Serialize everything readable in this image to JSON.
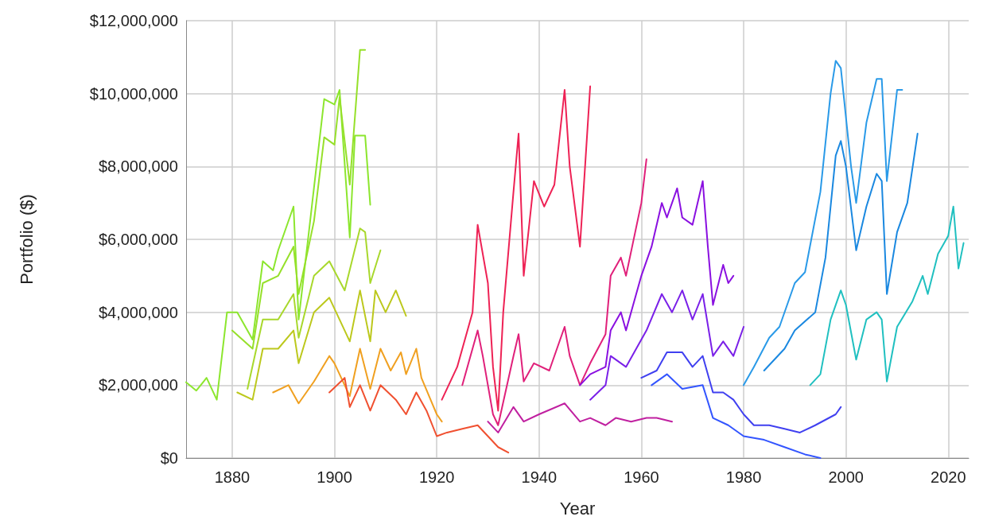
{
  "chart_data": {
    "type": "line",
    "xlabel": "Year",
    "ylabel": "Portfolio ($)",
    "xlim": [
      1871,
      2024
    ],
    "xticks": [
      1880,
      1900,
      1920,
      1940,
      1960,
      1980,
      2000,
      2020
    ],
    "ylim": [
      0,
      12000000
    ],
    "yticks": [
      {
        "value": 0,
        "label": "$0"
      },
      {
        "value": 2000000,
        "label": "$2,000,000"
      },
      {
        "value": 4000000,
        "label": "$4,000,000"
      },
      {
        "value": 6000000,
        "label": "$6,000,000"
      },
      {
        "value": 8000000,
        "label": "$8,000,000"
      },
      {
        "value": 10000000,
        "label": "$10,000,000"
      },
      {
        "value": 12000000,
        "label": "$12,000,000"
      }
    ],
    "grid": true,
    "marker": "none",
    "line_style": "solid",
    "series": [
      {
        "color": "#8ce62e",
        "x": [
          1871,
          1873,
          1875,
          1877,
          1879,
          1881,
          1884,
          1886,
          1888,
          1889,
          1892,
          1893,
          1895,
          1898,
          1900,
          1901,
          1903,
          1904,
          1906,
          1907
        ],
        "values": [
          2080000,
          1850000,
          2200000,
          1600000,
          4000000,
          4000000,
          3250000,
          5400000,
          5150000,
          5700000,
          6900000,
          3800000,
          6200000,
          9850000,
          9700000,
          10100000,
          6050000,
          8850000,
          8850000,
          6950000
        ]
      },
      {
        "color": "#96e02a",
        "x": [
          1880,
          1884,
          1886,
          1889,
          1892,
          1893,
          1896,
          1898,
          1900,
          1901,
          1903,
          1905,
          1906
        ],
        "values": [
          3500000,
          3000000,
          4800000,
          5000000,
          5800000,
          4500000,
          6500000,
          8800000,
          8600000,
          9900000,
          7500000,
          11200000,
          11200000
        ]
      },
      {
        "color": "#a8d82c",
        "x": [
          1883,
          1886,
          1889,
          1892,
          1893,
          1896,
          1899,
          1902,
          1905,
          1906,
          1907,
          1909
        ],
        "values": [
          1900000,
          3800000,
          3800000,
          4500000,
          3300000,
          5000000,
          5400000,
          4600000,
          6300000,
          6200000,
          4800000,
          5700000
        ]
      },
      {
        "color": "#bcc81c",
        "x": [
          1881,
          1884,
          1886,
          1889,
          1892,
          1893,
          1896,
          1899,
          1900,
          1903,
          1905,
          1907,
          1908,
          1910,
          1912,
          1914
        ],
        "values": [
          1800000,
          1600000,
          3000000,
          3000000,
          3500000,
          2600000,
          4000000,
          4400000,
          4100000,
          3200000,
          4600000,
          3200000,
          4600000,
          4000000,
          4600000,
          3900000
        ]
      },
      {
        "color": "#f0a020",
        "x": [
          1888,
          1891,
          1893,
          1896,
          1899,
          1900,
          1903,
          1905,
          1907,
          1909,
          1911,
          1913,
          1914,
          1916,
          1917,
          1920,
          1921
        ],
        "values": [
          1800000,
          2000000,
          1500000,
          2100000,
          2800000,
          2600000,
          1700000,
          3000000,
          1900000,
          3000000,
          2400000,
          2900000,
          2300000,
          3000000,
          2200000,
          1200000,
          1000000
        ]
      },
      {
        "color": "#f05030",
        "x": [
          1899,
          1902,
          1903,
          1905,
          1907,
          1909,
          1912,
          1914,
          1916,
          1918,
          1920,
          1922,
          1925,
          1928,
          1930,
          1932,
          1934
        ],
        "values": [
          1800000,
          2200000,
          1400000,
          2000000,
          1300000,
          2000000,
          1600000,
          1200000,
          1800000,
          1300000,
          600000,
          700000,
          800000,
          900000,
          600000,
          300000,
          150000
        ]
      },
      {
        "color": "#ee2255",
        "x": [
          1921,
          1924,
          1927,
          1928,
          1930,
          1931,
          1932,
          1933,
          1935,
          1936,
          1937,
          1939,
          1941,
          1943,
          1945,
          1946,
          1948,
          1950
        ],
        "values": [
          1600000,
          2500000,
          4000000,
          6400000,
          4800000,
          2500000,
          1300000,
          4000000,
          7300000,
          8900000,
          5000000,
          7600000,
          6900000,
          7500000,
          10100000,
          8000000,
          5800000,
          10200000
        ]
      },
      {
        "color": "#e0207a",
        "x": [
          1925,
          1928,
          1929,
          1931,
          1932,
          1935,
          1936,
          1937,
          1939,
          1942,
          1945,
          1946,
          1948,
          1950,
          1953,
          1954,
          1956,
          1957,
          1960,
          1961
        ],
        "values": [
          2000000,
          3500000,
          2800000,
          1200000,
          900000,
          2800000,
          3400000,
          2100000,
          2600000,
          2400000,
          3600000,
          2800000,
          2000000,
          2600000,
          3400000,
          5000000,
          5500000,
          5000000,
          7000000,
          8200000
        ]
      },
      {
        "color": "#c020a0",
        "x": [
          1930,
          1932,
          1935,
          1937,
          1940,
          1945,
          1948,
          1950,
          1953,
          1955,
          1958,
          1961,
          1963,
          1966
        ],
        "values": [
          1000000,
          700000,
          1400000,
          1000000,
          1200000,
          1500000,
          1000000,
          1100000,
          900000,
          1100000,
          1000000,
          1100000,
          1100000,
          1000000
        ]
      },
      {
        "color": "#8a10e0",
        "x": [
          1948,
          1950,
          1953,
          1954,
          1956,
          1957,
          1960,
          1962,
          1964,
          1965,
          1967,
          1968,
          1970,
          1972,
          1973,
          1974,
          1976,
          1977,
          1978
        ],
        "values": [
          2000000,
          2300000,
          2500000,
          3500000,
          4000000,
          3500000,
          5000000,
          5800000,
          7000000,
          6600000,
          7400000,
          6600000,
          6400000,
          7600000,
          5800000,
          4200000,
          5300000,
          4800000,
          5000000
        ]
      },
      {
        "color": "#7a20e8",
        "x": [
          1950,
          1953,
          1954,
          1957,
          1961,
          1964,
          1966,
          1968,
          1970,
          1972,
          1974,
          1976,
          1978,
          1980
        ],
        "values": [
          1600000,
          2000000,
          2800000,
          2500000,
          3500000,
          4500000,
          4000000,
          4600000,
          3800000,
          4500000,
          2800000,
          3200000,
          2800000,
          3600000
        ]
      },
      {
        "color": "#4040f0",
        "x": [
          1960,
          1963,
          1965,
          1968,
          1970,
          1972,
          1974,
          1976,
          1978,
          1980,
          1982,
          1985,
          1988,
          1991,
          1994,
          1998,
          1999
        ],
        "values": [
          2200000,
          2400000,
          2900000,
          2900000,
          2500000,
          2800000,
          1800000,
          1800000,
          1600000,
          1200000,
          900000,
          900000,
          800000,
          700000,
          900000,
          1200000,
          1400000
        ]
      },
      {
        "color": "#3355ff",
        "x": [
          1962,
          1965,
          1968,
          1972,
          1974,
          1977,
          1980,
          1984,
          1988,
          1992,
          1995
        ],
        "values": [
          2000000,
          2300000,
          1900000,
          2000000,
          1100000,
          900000,
          600000,
          500000,
          300000,
          100000,
          0
        ]
      },
      {
        "color": "#2a9ae8",
        "x": [
          1980,
          1982,
          1985,
          1987,
          1990,
          1992,
          1995,
          1997,
          1998,
          1999,
          2001,
          2002,
          2004,
          2006,
          2007,
          2008,
          2010,
          2011
        ],
        "values": [
          2000000,
          2500000,
          3300000,
          3600000,
          4800000,
          5100000,
          7300000,
          10000000,
          10900000,
          10700000,
          8000000,
          7000000,
          9200000,
          10400000,
          10400000,
          7600000,
          10100000,
          10100000
        ]
      },
      {
        "color": "#1a88e0",
        "x": [
          1984,
          1988,
          1990,
          1994,
          1996,
          1998,
          1999,
          2000,
          2002,
          2004,
          2006,
          2007,
          2008,
          2010,
          2012,
          2014
        ],
        "values": [
          2400000,
          3000000,
          3500000,
          4000000,
          5500000,
          8300000,
          8700000,
          8000000,
          5700000,
          6900000,
          7800000,
          7600000,
          4500000,
          6200000,
          7000000,
          8900000
        ]
      },
      {
        "color": "#20c0c0",
        "x": [
          1993,
          1995,
          1997,
          1999,
          2000,
          2002,
          2004,
          2006,
          2007,
          2008,
          2010,
          2013,
          2015,
          2016,
          2018,
          2020,
          2021,
          2022,
          2023
        ],
        "values": [
          2000000,
          2300000,
          3800000,
          4600000,
          4200000,
          2700000,
          3800000,
          4000000,
          3800000,
          2100000,
          3600000,
          4300000,
          5000000,
          4500000,
          5600000,
          6100000,
          6900000,
          5200000,
          5900000
        ]
      }
    ]
  }
}
